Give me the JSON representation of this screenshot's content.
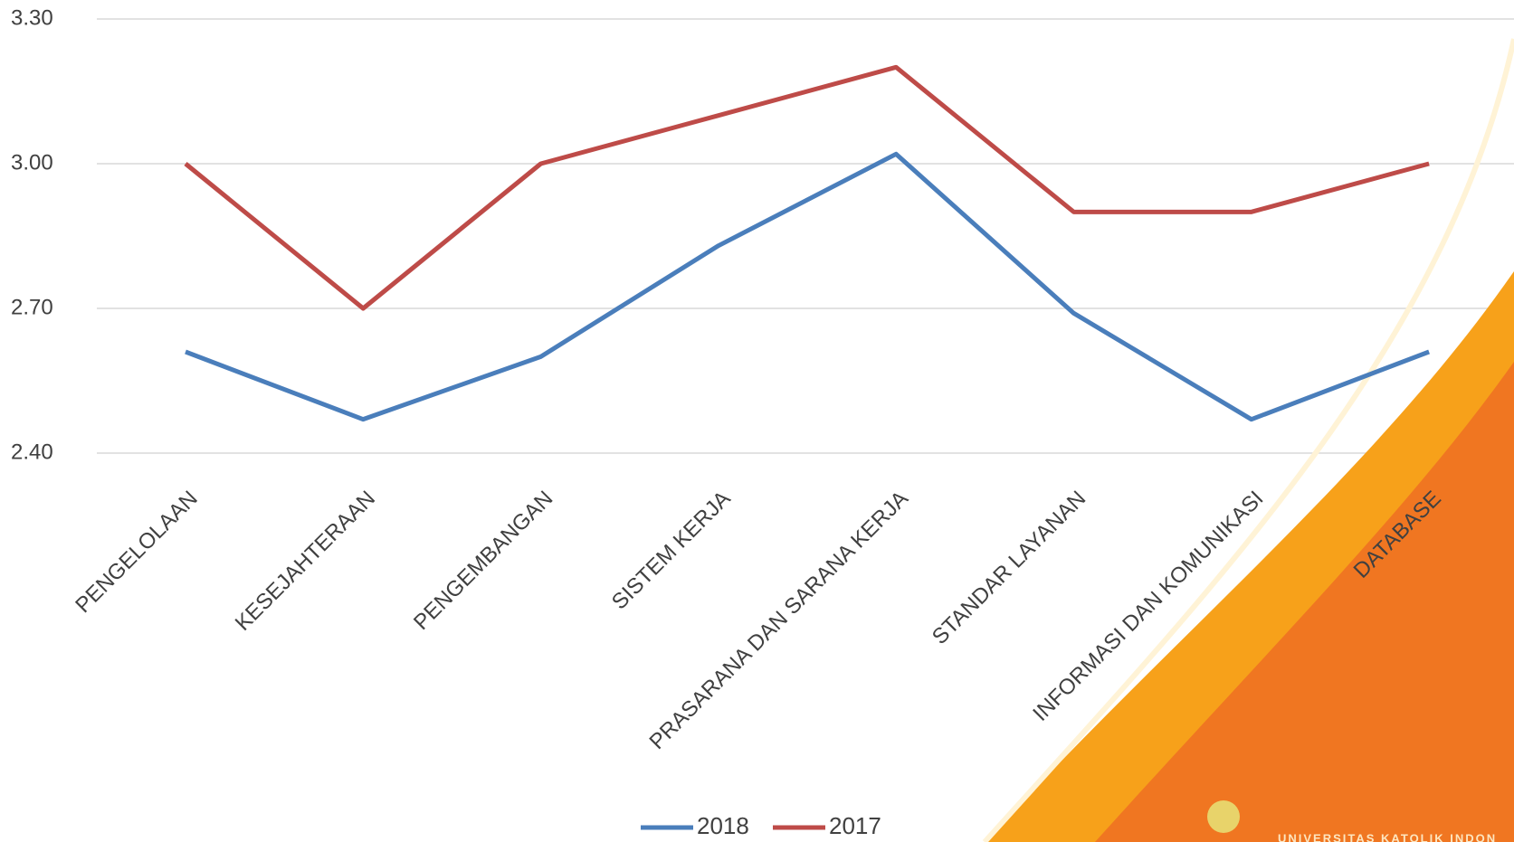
{
  "chart_data": {
    "type": "line",
    "categories": [
      "PENGELOLAAN",
      "KESEJAHTERAAN",
      "PENGEMBANGAN",
      "SISTEM KERJA",
      "PRASARANA DAN SARANA KERJA",
      "STANDAR LAYANAN",
      "INFORMASI DAN KOMUNIKASI",
      "DATABASE"
    ],
    "series": [
      {
        "name": "2018",
        "color": "#4a7ebb",
        "values": [
          2.61,
          2.47,
          2.6,
          2.83,
          3.02,
          2.69,
          2.47,
          2.61
        ]
      },
      {
        "name": "2017",
        "color": "#be4b48",
        "values": [
          3.0,
          2.7,
          3.0,
          3.1,
          3.2,
          2.9,
          2.9,
          3.0
        ]
      }
    ],
    "ylim": [
      2.4,
      3.3
    ],
    "yticks": [
      {
        "value": 3.3,
        "label": "3.30"
      },
      {
        "value": 3.0,
        "label": "3.00"
      },
      {
        "value": 2.7,
        "label": "2.70"
      },
      {
        "value": 2.4,
        "label": "2.40"
      }
    ],
    "grid": true,
    "legend": "bottom"
  },
  "logo_text": "UNIVERSITAS KATOLIK INDON"
}
